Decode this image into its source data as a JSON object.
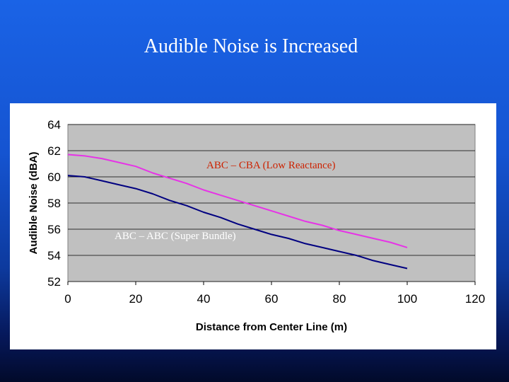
{
  "slide": {
    "title": "Audible Noise is Increased"
  },
  "chart_data": {
    "type": "line",
    "title": "",
    "xlabel": "Distance from Center Line (m)",
    "ylabel": "Audible Noise (dBA)",
    "xlim": [
      0,
      120
    ],
    "ylim": [
      52,
      64
    ],
    "xticks": [
      0,
      20,
      40,
      60,
      80,
      100,
      120
    ],
    "yticks": [
      52,
      54,
      56,
      58,
      60,
      62,
      64
    ],
    "grid": true,
    "legend": "none",
    "plot_background": "#c0c0c0",
    "series": [
      {
        "name": "ABC – CBA (Low Reactance)",
        "color": "#e633e6",
        "label_color": "#cc2200",
        "x": [
          0,
          5,
          10,
          15,
          20,
          25,
          30,
          35,
          40,
          45,
          50,
          55,
          60,
          65,
          70,
          75,
          80,
          85,
          90,
          95,
          100
        ],
        "y": [
          61.7,
          61.6,
          61.4,
          61.1,
          60.8,
          60.3,
          59.9,
          59.5,
          59.0,
          58.6,
          58.2,
          57.8,
          57.4,
          57.0,
          56.6,
          56.3,
          55.9,
          55.6,
          55.3,
          55.0,
          54.6
        ]
      },
      {
        "name": "ABC – ABC (Super Bundle)",
        "color": "#000080",
        "label_color": "#ffffff",
        "x": [
          0,
          5,
          10,
          15,
          20,
          25,
          30,
          35,
          40,
          45,
          50,
          55,
          60,
          65,
          70,
          75,
          80,
          85,
          90,
          95,
          100
        ],
        "y": [
          60.1,
          60.0,
          59.7,
          59.4,
          59.1,
          58.7,
          58.2,
          57.8,
          57.3,
          56.9,
          56.4,
          56.0,
          55.6,
          55.3,
          54.9,
          54.6,
          54.3,
          54.0,
          53.6,
          53.3,
          53.0
        ]
      }
    ]
  }
}
